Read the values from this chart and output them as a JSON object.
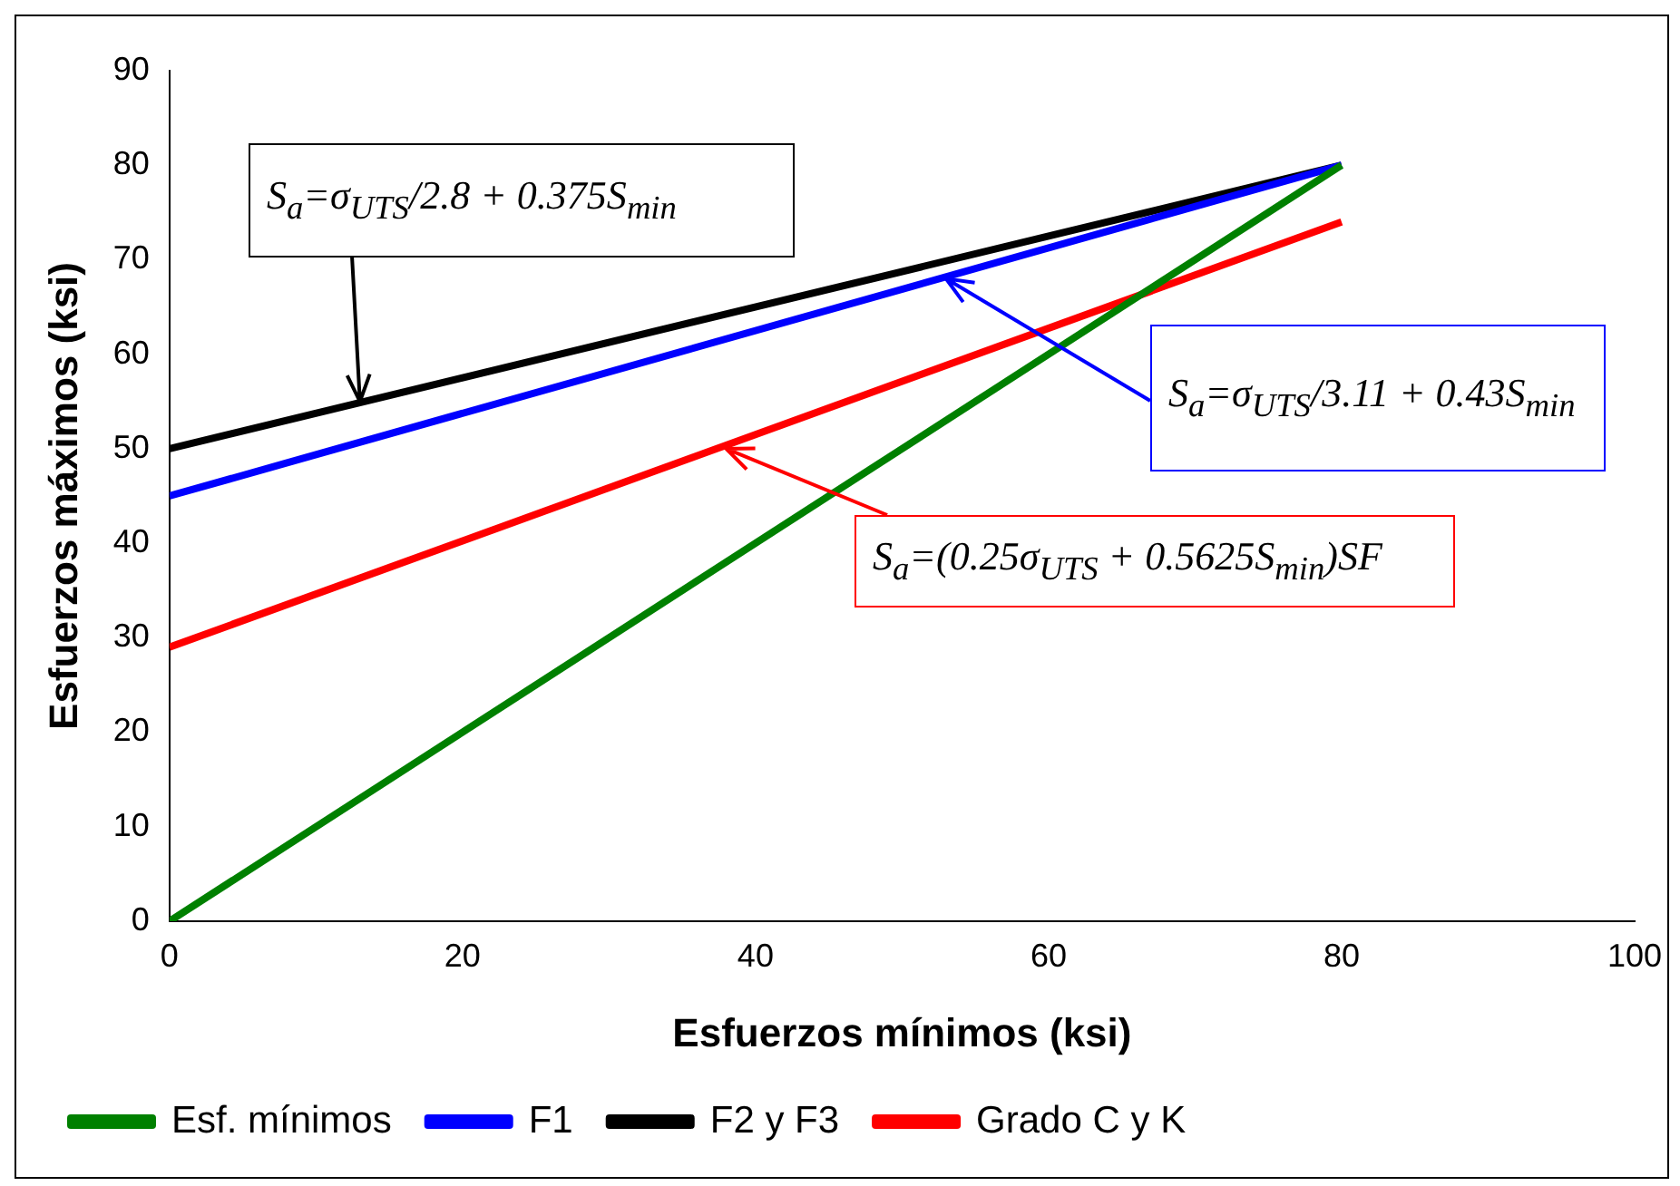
{
  "chart_data": {
    "type": "line",
    "xlabel": "Esfuerzos mínimos (ksi)",
    "ylabel": "Esfuerzos máximos (ksi)",
    "xlim": [
      0,
      100
    ],
    "xticks": [
      0,
      20,
      40,
      60,
      80,
      100
    ],
    "ylim": [
      0,
      90
    ],
    "yticks": [
      0,
      10,
      20,
      30,
      40,
      50,
      60,
      70,
      80,
      90
    ],
    "grid": false,
    "legend": "bottom",
    "marker": "none",
    "line_style": "solid",
    "x": [
      0,
      80
    ],
    "series": [
      {
        "name": "Esf. mínimos",
        "color": "#008000",
        "values": [
          0,
          80
        ]
      },
      {
        "name": "F1",
        "color": "#0000ff",
        "values": [
          45,
          80
        ]
      },
      {
        "name": "F2 y F3",
        "color": "#000000",
        "values": [
          50,
          80
        ]
      },
      {
        "name": "Grado C y K",
        "color": "#ff0000",
        "values": [
          29,
          74
        ]
      }
    ],
    "annotations": [
      {
        "text": "S$_{a}$=σ$_{UTS}$/2.8 + 0.375S$_{min}$",
        "x": 13,
        "y": 55
      },
      {
        "text": "S$_{a}$=σ$_{UTS}$/3.11 + 0.43S$_{min}$",
        "x": 53,
        "y": 68
      },
      {
        "text": "S$_{a}$=(0.25σ$_{UTS}$ + 0.5625S$_{min}$)SF",
        "x": 38,
        "y": 50
      }
    ]
  }
}
